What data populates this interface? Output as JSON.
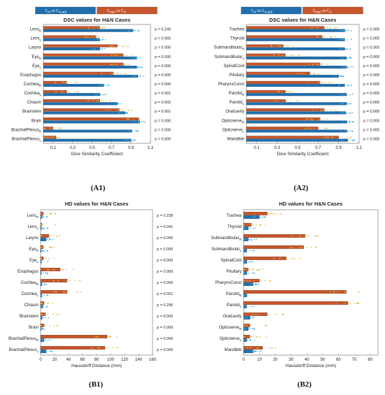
{
  "chart_data": [
    {
      "id": "A1",
      "type": "bar",
      "orientation": "horizontal",
      "panel_label": "(A1)",
      "title": "DSC values for H&N Cases",
      "xlabel": "Dice Similarity Coefficient",
      "xlim": [
        0,
        1.1
      ],
      "xticks": [
        0.1,
        0.3,
        0.5,
        0.7,
        0.9,
        1.1
      ],
      "legend": {
        "placement": "top",
        "entries": [
          {
            "color": "#1f6fae",
            "text": "C_Ai vs C_Ai,adj"
          },
          {
            "color": "#c8552b",
            "text": "C_man vs C_Ai"
          }
        ]
      },
      "categories": [
        {
          "name": "Lens",
          "sub": "R"
        },
        {
          "name": "Lens",
          "sub": "L"
        },
        {
          "name": "Larynx",
          "sub": ""
        },
        {
          "name": "Eye",
          "sub": "R"
        },
        {
          "name": "Eye",
          "sub": "L"
        },
        {
          "name": "Esophagus",
          "sub": ""
        },
        {
          "name": "Cochlea",
          "sub": "R"
        },
        {
          "name": "Cochlea",
          "sub": "L"
        },
        {
          "name": "Chiasm",
          "sub": ""
        },
        {
          "name": "Brainstem",
          "sub": ""
        },
        {
          "name": "Brain",
          "sub": ""
        },
        {
          "name": "BrachialPlexus",
          "sub": "R"
        },
        {
          "name": "BrachialPlexus",
          "sub": "L"
        }
      ],
      "series": [
        {
          "name": "C_Ai vs C_Ai,adj",
          "color": "#1f6fae",
          "values": [
            0.92,
            0.58,
            0.58,
            0.96,
            0.96,
            0.97,
            0.62,
            0.58,
            0.76,
            0.84,
            0.99,
            0.91,
            0.9
          ]
        },
        {
          "name": "C_man vs C_Ai",
          "color": "#c8552b",
          "values": [
            0.58,
            0.54,
            0.76,
            0.82,
            0.82,
            0.72,
            0.24,
            0.24,
            0.58,
            0.78,
            0.98,
            0.1,
            0.13
          ]
        }
      ],
      "p_values": [
        "p = 0.249",
        "p = 0.060",
        "p = 0.000",
        "p = 0.000",
        "p = 0.000",
        "p = 0.000",
        "p = 0.000",
        "p = 0.001",
        "p = 0.002",
        "p = 0.001",
        "p = 0.000",
        "p = 0.000",
        "p = 0.000"
      ]
    },
    {
      "id": "A2",
      "type": "bar",
      "orientation": "horizontal",
      "panel_label": "(A2)",
      "title": "DSC values for H&N Cases",
      "xlabel": "Dice Similarity Coefficient",
      "xlim": [
        0,
        1.1
      ],
      "xticks": [
        0.1,
        0.3,
        0.5,
        0.7,
        0.9,
        1.1
      ],
      "legend": {
        "placement": "top",
        "entries": [
          {
            "color": "#1f6fae",
            "text": "C_Ai vs C_Ai,adj"
          },
          {
            "color": "#c8552b",
            "text": "C_man vs C_Ai"
          }
        ]
      },
      "categories": [
        {
          "name": "Trachea",
          "sub": ""
        },
        {
          "name": "Thyroid",
          "sub": ""
        },
        {
          "name": "Submandibular",
          "sub": "R"
        },
        {
          "name": "Submandibular",
          "sub": "L"
        },
        {
          "name": "SpinalCord",
          "sub": ""
        },
        {
          "name": "Pituitary",
          "sub": ""
        },
        {
          "name": "PharynxConst",
          "sub": ""
        },
        {
          "name": "Parotid",
          "sub": "R"
        },
        {
          "name": "Parotid",
          "sub": "L"
        },
        {
          "name": "Oralcavity",
          "sub": ""
        },
        {
          "name": "Opticnerve",
          "sub": "R"
        },
        {
          "name": "Opticnerve",
          "sub": "L"
        },
        {
          "name": "Mandible",
          "sub": ""
        }
      ],
      "series": [
        {
          "name": "C_Ai vs C_Ai,adj",
          "color": "#1f6fae",
          "values": [
            0.96,
            0.96,
            0.96,
            0.98,
            0.98,
            0.9,
            0.96,
            0.98,
            0.98,
            0.97,
            0.98,
            0.98,
            0.99
          ]
        },
        {
          "name": "C_man vs C_Ai",
          "color": "#c8552b",
          "values": [
            0.76,
            0.74,
            0.36,
            0.38,
            0.72,
            0.62,
            0.72,
            0.38,
            0.38,
            0.76,
            0.72,
            0.7,
            0.9
          ]
        }
      ],
      "p_values": [
        "p = 0.000",
        "p = 0.000",
        "p = 0.000",
        "p = 0.000",
        "p = 0.000",
        "p = 0.000",
        "p = 0.000",
        "p = 0.000",
        "p = 0.000",
        "p = 0.000",
        "p = 0.000",
        "p = 0.000",
        "p = 0.000"
      ]
    },
    {
      "id": "B1",
      "type": "bar",
      "orientation": "horizontal",
      "panel_label": "(B1)",
      "title": "HD values for H&N Cases",
      "xlabel": "Hausdorff Distance (mm)",
      "xlim": [
        0,
        160
      ],
      "xticks": [
        0,
        20,
        40,
        60,
        80,
        100,
        120,
        140,
        160
      ],
      "categories": [
        {
          "name": "Lens",
          "sub": "R"
        },
        {
          "name": "Lens",
          "sub": "L"
        },
        {
          "name": "Larynx",
          "sub": ""
        },
        {
          "name": "Eye",
          "sub": "R"
        },
        {
          "name": "Eye",
          "sub": "L"
        },
        {
          "name": "Esophagus",
          "sub": ""
        },
        {
          "name": "Cochlea",
          "sub": "R"
        },
        {
          "name": "Cochlea",
          "sub": "L"
        },
        {
          "name": "Chiasm",
          "sub": ""
        },
        {
          "name": "Brainstem",
          "sub": ""
        },
        {
          "name": "Brain",
          "sub": ""
        },
        {
          "name": "BrachialPlexus",
          "sub": "R"
        },
        {
          "name": "BrachialPlexus",
          "sub": "L"
        }
      ],
      "series": [
        {
          "name": "C_Ai vs C_Ai,adj",
          "color": "#1f6fae",
          "values": [
            2,
            1,
            8,
            1,
            1,
            1,
            2,
            2,
            3,
            2,
            1,
            5,
            8
          ]
        },
        {
          "name": "C_man vs C_Ai",
          "color": "#c8552b",
          "values": [
            4,
            2,
            12,
            4,
            4,
            28,
            38,
            38,
            5,
            7,
            5,
            95,
            92
          ]
        }
      ],
      "p_values": [
        "p = 0.238",
        "p = 0.041",
        "p = 0.000",
        "p = 0.000",
        "p = 0.000",
        "p = 0.000",
        "p = 0.000",
        "p = 0.001",
        "p = 0.296",
        "p = 0.000",
        "p = 0.000",
        "p = 0.000",
        "p = 0.000"
      ]
    },
    {
      "id": "B2",
      "type": "bar",
      "orientation": "horizontal",
      "panel_label": "(B2)",
      "title": "HD values for H&N Cases",
      "xlabel": "Hausdorff Distance (mm)",
      "xlim": [
        0,
        85
      ],
      "xticks": [
        0,
        10,
        20,
        30,
        40,
        50,
        60,
        70,
        80
      ],
      "categories": [
        {
          "name": "Trachea",
          "sub": ""
        },
        {
          "name": "Thyroid",
          "sub": ""
        },
        {
          "name": "Submandibular",
          "sub": "R"
        },
        {
          "name": "Submandibular",
          "sub": "L"
        },
        {
          "name": "SpinalCord",
          "sub": ""
        },
        {
          "name": "Pituitary",
          "sub": ""
        },
        {
          "name": "PharynxConst",
          "sub": ""
        },
        {
          "name": "Parotid",
          "sub": "R"
        },
        {
          "name": "Parotid",
          "sub": "L"
        },
        {
          "name": "Oralcavity",
          "sub": ""
        },
        {
          "name": "Opticnerve",
          "sub": "R"
        },
        {
          "name": "Opticnerve",
          "sub": "L"
        },
        {
          "name": "Mandible",
          "sub": ""
        }
      ],
      "series": [
        {
          "name": "C_Ai vs C_Ai,adj",
          "color": "#1f6fae",
          "values": [
            10,
            3,
            3,
            2,
            2,
            2,
            6,
            2,
            2,
            4,
            3,
            2,
            6
          ]
        },
        {
          "name": "C_man vs C_Ai",
          "color": "#c8552b",
          "values": [
            15,
            5,
            39,
            38,
            27,
            3,
            10,
            65,
            66,
            15,
            4,
            4,
            12
          ]
        }
      ],
      "p_values": []
    }
  ]
}
